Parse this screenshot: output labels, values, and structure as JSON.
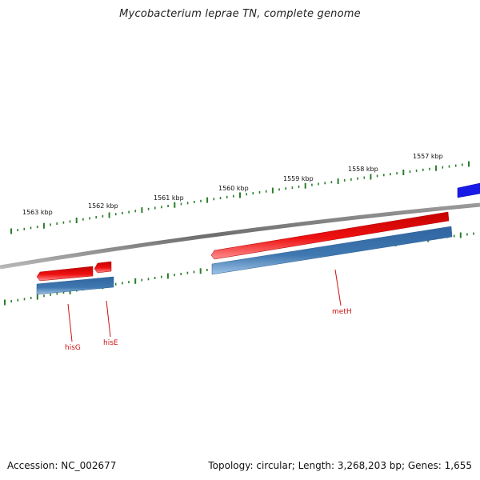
{
  "title": "Mycobacterium leprae TN, complete genome",
  "footer": {
    "accession": "Accession: NC_002677",
    "stats": "Topology: circular; Length: 3,268,203 bp; Genes: 1,655"
  },
  "colors": {
    "backbone": "#8a8a8a",
    "forward_feature": "#ee1111",
    "cds": "#3f78b0",
    "tick": "#2a7d2a",
    "gene_label": "#cc1111",
    "far_feature": "#1a1ae6"
  },
  "ruler": {
    "labels": [
      "1563 kbp",
      "1562 kbp",
      "1561 kbp",
      "1560 kbp",
      "1559 kbp",
      "1558 kbp",
      "1557 kbp"
    ]
  },
  "genes": [
    {
      "name": "hisG"
    },
    {
      "name": "hisE"
    },
    {
      "name": "metH"
    }
  ]
}
